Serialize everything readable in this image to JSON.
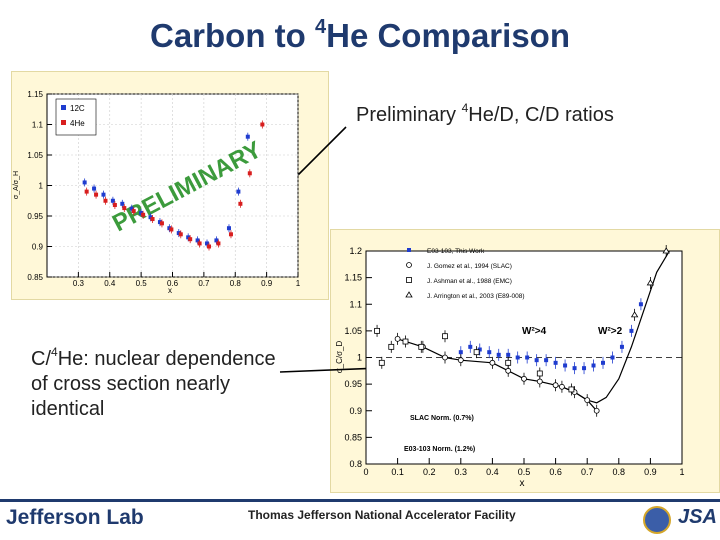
{
  "title": {
    "pre": "Carbon to ",
    "sup": "4",
    "post": "He Comparison"
  },
  "prelim_label": {
    "pre": "Preliminary ",
    "sup": "4",
    "post": "He/D, C/D ratios"
  },
  "side_text": {
    "pre": "C/",
    "sup": "4",
    "post": "He: nuclear dependence of cross section nearly identical"
  },
  "footer": {
    "lab": "Jefferson Lab",
    "facility": "Thomas Jefferson National Accelerator Facility",
    "logo2": "JSA"
  },
  "colors": {
    "title": "#1f3a6e",
    "carbon": "#1f3ccf",
    "helium": "#d81e1e",
    "watermark": "#1a8a1a",
    "panel_bg": "#fff8d8"
  },
  "chart_data": [
    {
      "type": "scatter",
      "title": "",
      "xlabel": "x",
      "ylabel": "σ_A/σ_H",
      "xlim": [
        0.2,
        1.0
      ],
      "ylim": [
        0.85,
        1.15
      ],
      "xticks": [
        "0.3",
        "0.4",
        "0.5",
        "0.6",
        "0.7",
        "0.8",
        "0.9",
        "1"
      ],
      "yticks": [
        "0.85",
        "0.9",
        "0.95",
        "1",
        "1.05",
        "1.1",
        "1.15"
      ],
      "watermark": "PRELIMINARY",
      "legend": [
        "12C",
        "4He"
      ],
      "legend_placement": "top-left",
      "series": [
        {
          "name": "12C",
          "color": "#1f3ccf",
          "x": [
            0.32,
            0.35,
            0.38,
            0.41,
            0.44,
            0.47,
            0.5,
            0.53,
            0.56,
            0.59,
            0.62,
            0.65,
            0.68,
            0.71,
            0.74,
            0.78,
            0.81,
            0.84
          ],
          "y": [
            1.005,
            0.995,
            0.985,
            0.975,
            0.97,
            0.962,
            0.955,
            0.948,
            0.94,
            0.93,
            0.922,
            0.915,
            0.91,
            0.905,
            0.91,
            0.93,
            0.99,
            1.08
          ]
        },
        {
          "name": "4He",
          "color": "#d81e1e",
          "x": [
            0.32,
            0.35,
            0.38,
            0.41,
            0.44,
            0.47,
            0.5,
            0.53,
            0.56,
            0.59,
            0.62,
            0.65,
            0.68,
            0.71,
            0.74,
            0.78,
            0.81,
            0.84,
            0.88
          ],
          "y": [
            0.99,
            0.985,
            0.975,
            0.968,
            0.963,
            0.958,
            0.952,
            0.945,
            0.938,
            0.928,
            0.92,
            0.912,
            0.905,
            0.9,
            0.905,
            0.92,
            0.97,
            1.02,
            1.1
          ]
        }
      ]
    },
    {
      "type": "scatter",
      "title": "",
      "xlabel": "x",
      "ylabel": "σ_C/σ_D",
      "xlim": [
        0,
        1.0
      ],
      "ylim": [
        0.8,
        1.2
      ],
      "xticks": [
        "0",
        "0.1",
        "0.2",
        "0.3",
        "0.4",
        "0.5",
        "0.6",
        "0.7",
        "0.8",
        "0.9",
        "1"
      ],
      "yticks": [
        "0.8",
        "0.85",
        "0.9",
        "0.95",
        "1",
        "1.05",
        "1.1",
        "1.15",
        "1.2"
      ],
      "legend": [
        "E03-103, This Work",
        "J. Gomez et al., 1994 (SLAC)",
        "J. Ashman et al., 1988 (EMC)",
        "J. Arrington et al., 2003 (E89-008)"
      ],
      "legend_placement": "top-right",
      "annotations": [
        "W²>4",
        "W²>2",
        "SLAC Norm. (0.7%)",
        "E03-103 Norm. (1.2%)"
      ],
      "series": [
        {
          "name": "E03-103, This Work",
          "color": "#1f3ccf",
          "x": [
            0.3,
            0.33,
            0.36,
            0.39,
            0.42,
            0.45,
            0.48,
            0.51,
            0.54,
            0.57,
            0.6,
            0.63,
            0.66,
            0.69,
            0.72,
            0.75,
            0.78,
            0.81,
            0.84,
            0.87
          ],
          "y": [
            1.01,
            1.02,
            1.015,
            1.01,
            1.005,
            1.005,
            1.0,
            1.0,
            0.995,
            0.995,
            0.99,
            0.985,
            0.98,
            0.98,
            0.985,
            0.99,
            1.0,
            1.02,
            1.05,
            1.1
          ]
        },
        {
          "name": "J. Gomez et al., 1994 (SLAC)",
          "color": "#000000",
          "x": [
            0.1,
            0.18,
            0.25,
            0.3,
            0.4,
            0.45,
            0.5,
            0.55,
            0.6,
            0.62,
            0.66,
            0.7,
            0.73
          ],
          "y": [
            1.035,
            1.02,
            1.0,
            0.995,
            0.99,
            0.975,
            0.96,
            0.955,
            0.948,
            0.945,
            0.935,
            0.92,
            0.9
          ]
        },
        {
          "name": "J. Ashman et al., 1988 (EMC)",
          "color": "#000000",
          "x": [
            0.035,
            0.05,
            0.08,
            0.125,
            0.175,
            0.25,
            0.35,
            0.45,
            0.55,
            0.65
          ],
          "y": [
            1.05,
            0.99,
            1.02,
            1.03,
            1.02,
            1.04,
            1.01,
            0.99,
            0.97,
            0.94
          ]
        },
        {
          "name": "J. Arrington et al., 2003 (E89-008)",
          "color": "#000000",
          "x": [
            0.85,
            0.9,
            0.95
          ],
          "y": [
            1.08,
            1.14,
            1.2
          ]
        }
      ]
    }
  ]
}
